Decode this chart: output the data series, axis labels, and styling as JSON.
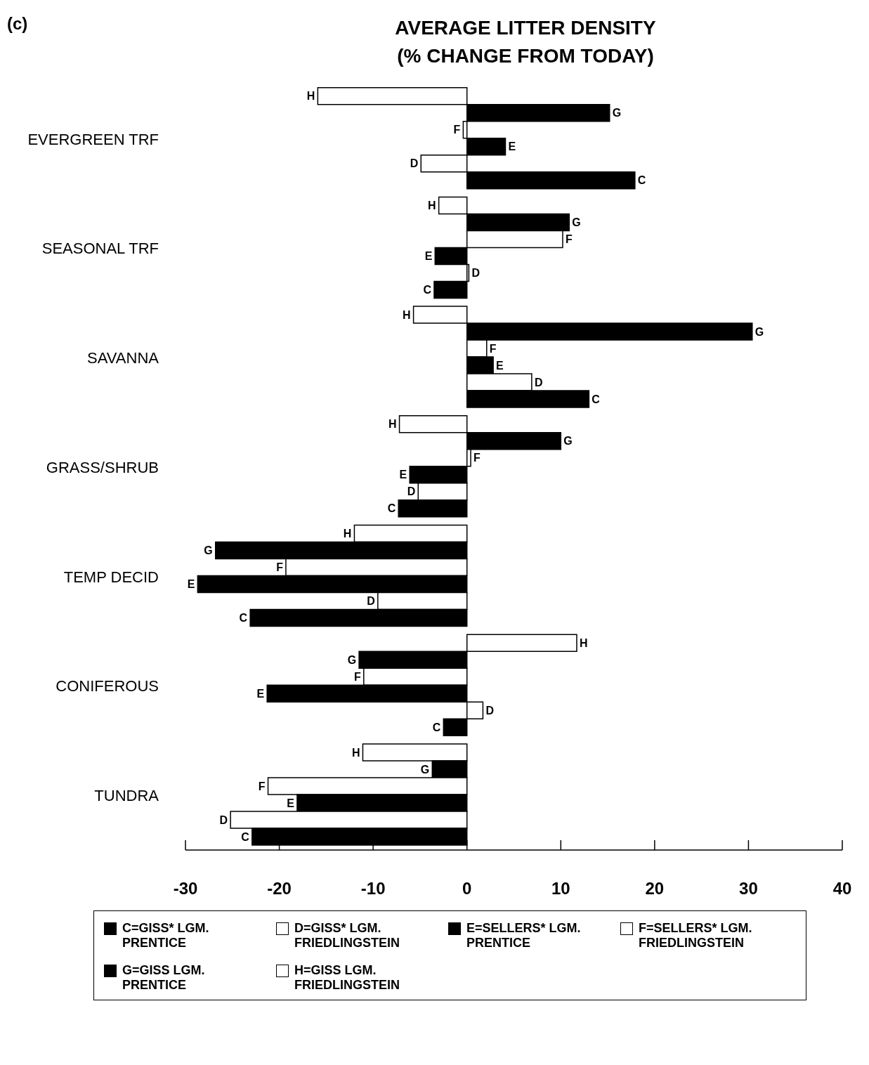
{
  "chart_data": {
    "type": "bar",
    "orientation": "horizontal",
    "title": "AVERAGE LITTER DENSITY",
    "subtitle": "(% CHANGE FROM TODAY)",
    "annotations": [
      "(c)"
    ],
    "categories": [
      "EVERGREEN TRF",
      "SEASONAL TRF",
      "SAVANNA",
      "GRASS/SHRUB",
      "TEMP DECID",
      "CONIFEROUS",
      "TUNDRA"
    ],
    "xlim": [
      -30,
      40
    ],
    "xticks": [
      -30,
      -20,
      -10,
      0,
      10,
      20,
      30,
      40
    ],
    "grid": false,
    "legend": "bottom",
    "series": [
      {
        "name": "H=GISS LGM. FRIEDLINGSTEIN",
        "color": "#ffffff",
        "values": [
          -15.9,
          -3.0,
          -5.7,
          -7.2,
          -12.0,
          11.7,
          -11.1
        ],
        "value_labels": [
          "H",
          "H",
          "H",
          "H",
          "H",
          "H",
          "H"
        ]
      },
      {
        "name": "G=GISS LGM. PRENTICE",
        "color": "#000000",
        "values": [
          15.2,
          10.9,
          30.4,
          10.0,
          -26.8,
          -11.5,
          -3.7
        ],
        "value_labels": [
          "G",
          "G",
          "G",
          "G",
          "G",
          "G",
          "G"
        ]
      },
      {
        "name": "F=SELLERS* LGM. FRIEDLINGSTEIN",
        "color": "#ffffff",
        "values": [
          -0.4,
          10.2,
          2.1,
          0.4,
          -19.3,
          -11.0,
          -21.2
        ],
        "value_labels": [
          "F",
          "F",
          "F",
          "F",
          "F",
          "F",
          "F"
        ]
      },
      {
        "name": "E=SELLERS* LGM. PRENTICE",
        "color": "#000000",
        "values": [
          4.1,
          -3.4,
          2.8,
          -6.1,
          -28.7,
          -21.3,
          -18.1
        ],
        "value_labels": [
          "E",
          "E",
          "E",
          "E",
          "E",
          "E",
          "E"
        ]
      },
      {
        "name": "D=GISS* LGM. FRIEDLINGSTEIN",
        "color": "#ffffff",
        "values": [
          -4.9,
          0.2,
          6.9,
          -5.2,
          -9.5,
          1.7,
          -25.2
        ],
        "value_labels": [
          "D",
          "D",
          "D",
          "D",
          "D",
          "D",
          "D"
        ]
      },
      {
        "name": "C=GISS* LGM. PRENTICE",
        "color": "#000000",
        "values": [
          17.9,
          -3.5,
          13.0,
          -7.3,
          -23.1,
          -2.5,
          -22.9
        ],
        "value_labels": [
          "C",
          "C",
          "C",
          "C",
          "C",
          "C",
          "C"
        ]
      }
    ]
  }
}
